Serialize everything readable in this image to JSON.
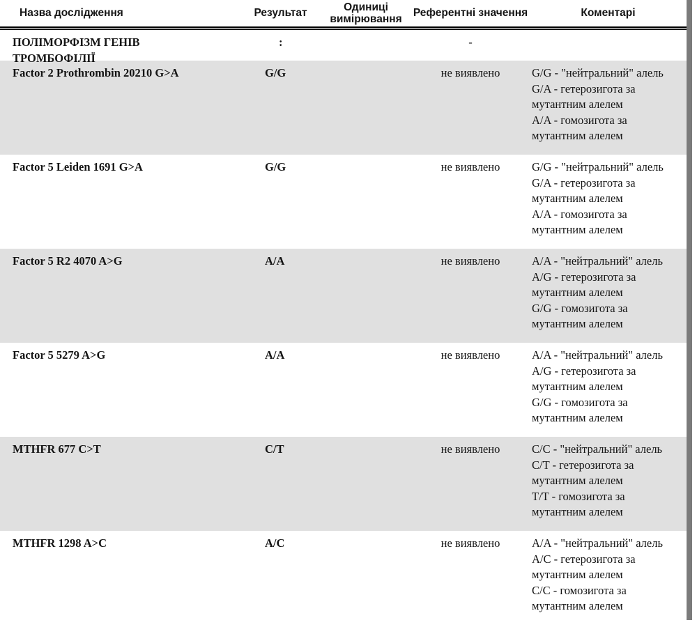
{
  "colors": {
    "row_shade": "#e0e0e0",
    "scrollbar": "#7b7b7b",
    "text": "#151515"
  },
  "table": {
    "columns": [
      {
        "label": "Назва дослідження"
      },
      {
        "label": "Результат"
      },
      {
        "label": "Одиниці вимірювання"
      },
      {
        "label": "Референтні значення"
      },
      {
        "label": "Коментарі"
      }
    ],
    "section": {
      "name": "ПОЛІМОРФІЗМ ГЕНІВ ТРОМБОФІЛІЇ",
      "result": ":",
      "reference": "-"
    },
    "rows": [
      {
        "name": "Factor 2 Prothrombin 20210 G>A",
        "result": "G/G",
        "units": "",
        "reference": "не виявлено",
        "comments": [
          "G/G - \"нейтральний\" алель",
          "G/A - гетерозигота за",
          "мутантним алелем",
          "A/A - гомозигота за",
          "мутантним алелем"
        ]
      },
      {
        "name": "Factor 5 Leiden 1691 G>A",
        "result": "G/G",
        "units": "",
        "reference": "не виявлено",
        "comments": [
          "G/G - \"нейтральний\" алель",
          "G/A - гетерозигота за",
          "мутантним алелем",
          "A/A - гомозигота за",
          "мутантним алелем"
        ]
      },
      {
        "name": "Factor 5 R2 4070 A>G",
        "result": "A/A",
        "units": "",
        "reference": "не виявлено",
        "comments": [
          "A/A - \"нейтральний\" алель",
          "A/G - гетерозигота за",
          "мутантним алелем",
          "G/G - гомозигота за",
          "мутантним алелем"
        ]
      },
      {
        "name": "Factor 5 5279 A>G",
        "result": "A/A",
        "units": "",
        "reference": "не виявлено",
        "comments": [
          "A/A - \"нейтральний\" алель",
          "A/G - гетерозигота за",
          "мутантним алелем",
          "G/G - гомозигота за",
          "мутантним алелем"
        ]
      },
      {
        "name": "MTHFR 677 C>T",
        "result": "C/T",
        "units": "",
        "reference": "не виявлено",
        "comments": [
          "C/C - \"нейтральний\" алель",
          "C/T - гетерозигота за",
          "мутантним алелем",
          "T/T - гомозигота за",
          "мутантним алелем"
        ]
      },
      {
        "name": "MTHFR 1298 A>C",
        "result": "A/C",
        "units": "",
        "reference": "не виявлено",
        "comments": [
          "A/A - \"нейтральний\" алель",
          "A/C - гетерозигота за",
          "мутантним алелем",
          "C/C - гомозигота за",
          "мутантним алелем"
        ]
      }
    ]
  }
}
